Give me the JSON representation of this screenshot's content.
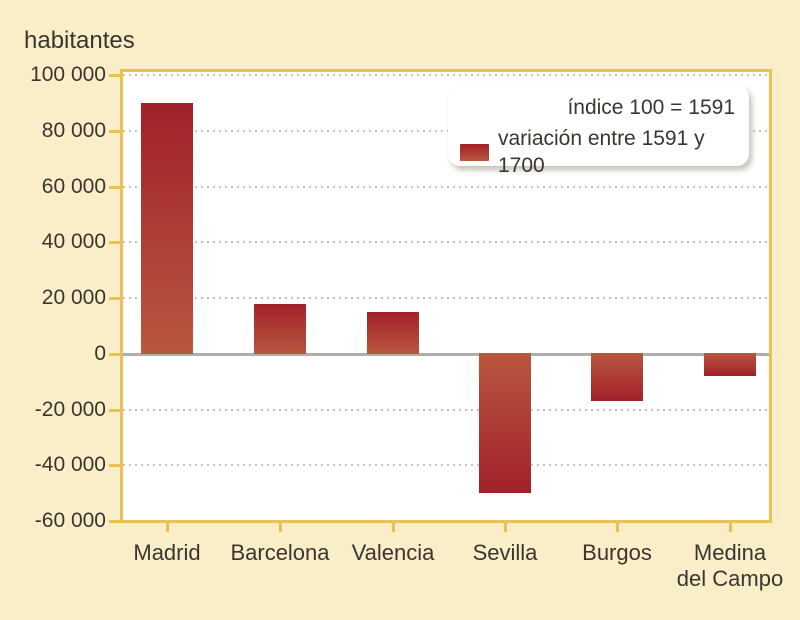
{
  "chart_data": {
    "type": "bar",
    "title": "habitantes",
    "categories": [
      "Madrid",
      "Barcelona",
      "Valencia",
      "Sevilla",
      "Burgos",
      "Medina del Campo"
    ],
    "category_label_lines": [
      [
        "Madrid"
      ],
      [
        "Barcelona"
      ],
      [
        "Valencia"
      ],
      [
        "Sevilla"
      ],
      [
        "Burgos"
      ],
      [
        "Medina",
        "del Campo"
      ]
    ],
    "values": [
      90000,
      18000,
      15000,
      -50000,
      -17000,
      -8000
    ],
    "xlabel": "",
    "ylabel": "habitantes",
    "ylim": [
      -60000,
      100000
    ],
    "ytick_interval": 20000,
    "yticks": [
      {
        "value": 100000,
        "label": "100 000"
      },
      {
        "value": 80000,
        "label": "80 000"
      },
      {
        "value": 60000,
        "label": "60 000"
      },
      {
        "value": 40000,
        "label": "40 000"
      },
      {
        "value": 20000,
        "label": "20 000"
      },
      {
        "value": 0,
        "label": "0"
      },
      {
        "value": -20000,
        "label": "-20 000"
      },
      {
        "value": -40000,
        "label": "-40 000"
      },
      {
        "value": -60000,
        "label": "-60 000"
      }
    ],
    "grid": "dotted-horizontal",
    "zero_line": "solid-gray",
    "legend_position": "top-right"
  },
  "legend": {
    "note": "índice 100 = 1591",
    "series_label": "variación entre 1591 y 1700"
  },
  "colors": {
    "background": "#FAEEC8",
    "plot_background": "#FFFFFF",
    "axis": "#ECC054",
    "bar_dark": "#A1212A",
    "bar_light": "#B9573F",
    "zero_line": "#B0AEAB",
    "gridline": "#C7C4BF",
    "text": "#3B352F"
  }
}
